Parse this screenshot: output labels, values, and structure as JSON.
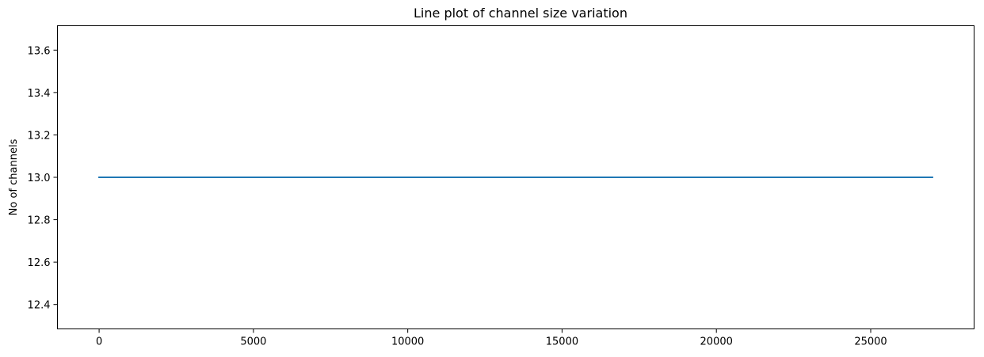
{
  "chart_data": {
    "type": "line",
    "title": "Line plot of channel size variation",
    "xlabel": "",
    "ylabel": "No of channels",
    "xlim": [
      -1350,
      28350
    ],
    "ylim": [
      12.285,
      13.715
    ],
    "x_ticks": [
      0,
      5000,
      10000,
      15000,
      20000,
      25000
    ],
    "x_tick_labels": [
      "0",
      "5000",
      "10000",
      "15000",
      "20000",
      "25000"
    ],
    "y_ticks": [
      12.4,
      12.6,
      12.8,
      13.0,
      13.2,
      13.4,
      13.6
    ],
    "y_tick_labels": [
      "12.4",
      "12.6",
      "12.8",
      "13.0",
      "13.2",
      "13.4",
      "13.6"
    ],
    "grid": false,
    "series": [
      {
        "color": "#1f77b4",
        "x": [
          0,
          27000
        ],
        "y": [
          13.0,
          13.0
        ]
      }
    ]
  }
}
